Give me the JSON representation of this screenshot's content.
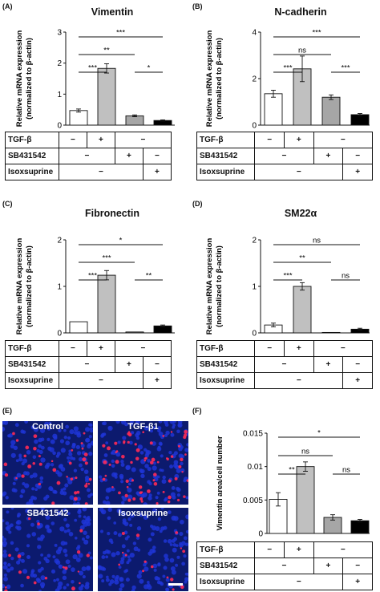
{
  "panels": [
    {
      "letter": "(A)",
      "title": "Vimentin",
      "ylabel1": "Relative mRNA expression",
      "ylabel2": "(normalized to β-actin)",
      "yticks": [
        0,
        1,
        2,
        3
      ],
      "ymax": 3,
      "values": [
        0.47,
        1.83,
        0.3,
        0.15
      ],
      "errors": [
        0.05,
        0.15,
        0.03,
        0.02
      ],
      "comparisons": [
        {
          "a": 0,
          "b": 3,
          "label": "***",
          "level": 3
        },
        {
          "a": 0,
          "b": 2,
          "label": "**",
          "level": 2
        },
        {
          "a": 0,
          "b": 1,
          "label": "***",
          "level": 1
        },
        {
          "a": 2,
          "b": 3,
          "label": "*",
          "level": 1
        }
      ]
    },
    {
      "letter": "(B)",
      "title": "N-cadherin",
      "ylabel1": "Relative mRNA expression",
      "ylabel2": "(normalized to β-actin)",
      "yticks": [
        0,
        2,
        4
      ],
      "ymax": 4,
      "values": [
        1.35,
        2.42,
        1.2,
        0.45
      ],
      "errors": [
        0.15,
        0.55,
        0.1,
        0.05
      ],
      "comparisons": [
        {
          "a": 0,
          "b": 3,
          "label": "***",
          "level": 3
        },
        {
          "a": 0,
          "b": 2,
          "label": "ns",
          "level": 2
        },
        {
          "a": 0,
          "b": 1,
          "label": "***",
          "level": 1
        },
        {
          "a": 2,
          "b": 3,
          "label": "***",
          "level": 1
        }
      ]
    },
    {
      "letter": "(C)",
      "title": "Fibronectin",
      "ylabel1": "Relative mRNA expression",
      "ylabel2": "(normalized to β-actin)",
      "yticks": [
        0,
        1,
        2
      ],
      "ymax": 2,
      "values": [
        0.24,
        1.24,
        0.02,
        0.15
      ],
      "errors": [
        0.0,
        0.1,
        0.0,
        0.02
      ],
      "comparisons": [
        {
          "a": 0,
          "b": 3,
          "label": "*",
          "level": 3
        },
        {
          "a": 0,
          "b": 2,
          "label": "***",
          "level": 2
        },
        {
          "a": 0,
          "b": 1,
          "label": "***",
          "level": 1
        },
        {
          "a": 2,
          "b": 3,
          "label": "**",
          "level": 1
        }
      ]
    },
    {
      "letter": "(D)",
      "title": "SM22α",
      "ylabel1": "Relative mRNA expression",
      "ylabel2": "(normalized to β-actin)",
      "yticks": [
        0,
        1,
        2
      ],
      "ymax": 2,
      "values": [
        0.17,
        1.0,
        0.01,
        0.08
      ],
      "errors": [
        0.04,
        0.08,
        0.0,
        0.02
      ],
      "comparisons": [
        {
          "a": 0,
          "b": 3,
          "label": "ns",
          "level": 3
        },
        {
          "a": 0,
          "b": 2,
          "label": "**",
          "level": 2
        },
        {
          "a": 0,
          "b": 1,
          "label": "***",
          "level": 1
        },
        {
          "a": 2,
          "b": 3,
          "label": "ns",
          "level": 1
        }
      ]
    },
    {
      "letter": "(F)",
      "title": "",
      "ylabel1": "Vimentin area/cell number",
      "ylabel2": "",
      "yticks": [
        "0",
        "0.005",
        "0.01",
        "0.015"
      ],
      "ytickvals": [
        0,
        0.005,
        0.01,
        0.015
      ],
      "ymax": 0.015,
      "values": [
        0.0051,
        0.01,
        0.0024,
        0.0019
      ],
      "errors": [
        0.001,
        0.0007,
        0.0004,
        0.0002
      ],
      "comparisons": [
        {
          "a": 0,
          "b": 3,
          "label": "*",
          "level": 3
        },
        {
          "a": 0,
          "b": 2,
          "label": "ns",
          "level": 2
        },
        {
          "a": 0,
          "b": 1,
          "label": "**",
          "level": 1
        },
        {
          "a": 2,
          "b": 3,
          "label": "ns",
          "level": 1
        }
      ]
    }
  ],
  "conditions": {
    "row1_label": "TGF-β",
    "row2_label": "SB431542",
    "row3_label": "Isoxsuprine",
    "minus": "−",
    "plus": "+"
  },
  "micrographs": {
    "letter": "(E)",
    "labels": [
      "Control",
      "TGF-β1",
      "SB431542",
      "Isoxsuprine"
    ]
  },
  "colors": {
    "bar_fills": [
      "#ffffff",
      "#c0c0c0",
      "#a6a6a6",
      "#000000"
    ],
    "nuclei": "#1f35d6",
    "vimentin_stain": "#ff2a55",
    "background_stain": "#0c1a6e"
  },
  "chart_data": [
    {
      "type": "bar",
      "title": "Vimentin",
      "categories": [
        "TGF-β −",
        "TGF-β +",
        "SB431542 +",
        "Isoxsuprine +"
      ],
      "values": [
        0.47,
        1.83,
        0.3,
        0.15
      ],
      "ylabel": "Relative mRNA expression (normalized to β-actin)",
      "ylim": [
        0,
        3
      ]
    },
    {
      "type": "bar",
      "title": "N-cadherin",
      "categories": [
        "TGF-β −",
        "TGF-β +",
        "SB431542 +",
        "Isoxsuprine +"
      ],
      "values": [
        1.35,
        2.42,
        1.2,
        0.45
      ],
      "ylabel": "Relative mRNA expression (normalized to β-actin)",
      "ylim": [
        0,
        4
      ]
    },
    {
      "type": "bar",
      "title": "Fibronectin",
      "categories": [
        "TGF-β −",
        "TGF-β +",
        "SB431542 +",
        "Isoxsuprine +"
      ],
      "values": [
        0.24,
        1.24,
        0.02,
        0.15
      ],
      "ylabel": "Relative mRNA expression (normalized to β-actin)",
      "ylim": [
        0,
        2
      ]
    },
    {
      "type": "bar",
      "title": "SM22α",
      "categories": [
        "TGF-β −",
        "TGF-β +",
        "SB431542 +",
        "Isoxsuprine +"
      ],
      "values": [
        0.17,
        1.0,
        0.01,
        0.08
      ],
      "ylabel": "Relative mRNA expression (normalized to β-actin)",
      "ylim": [
        0,
        2
      ]
    },
    {
      "type": "bar",
      "title": "",
      "categories": [
        "TGF-β −",
        "TGF-β +",
        "SB431542 +",
        "Isoxsuprine +"
      ],
      "values": [
        0.0051,
        0.01,
        0.0024,
        0.0019
      ],
      "ylabel": "Vimentin area/cell number",
      "ylim": [
        0,
        0.015
      ]
    }
  ]
}
